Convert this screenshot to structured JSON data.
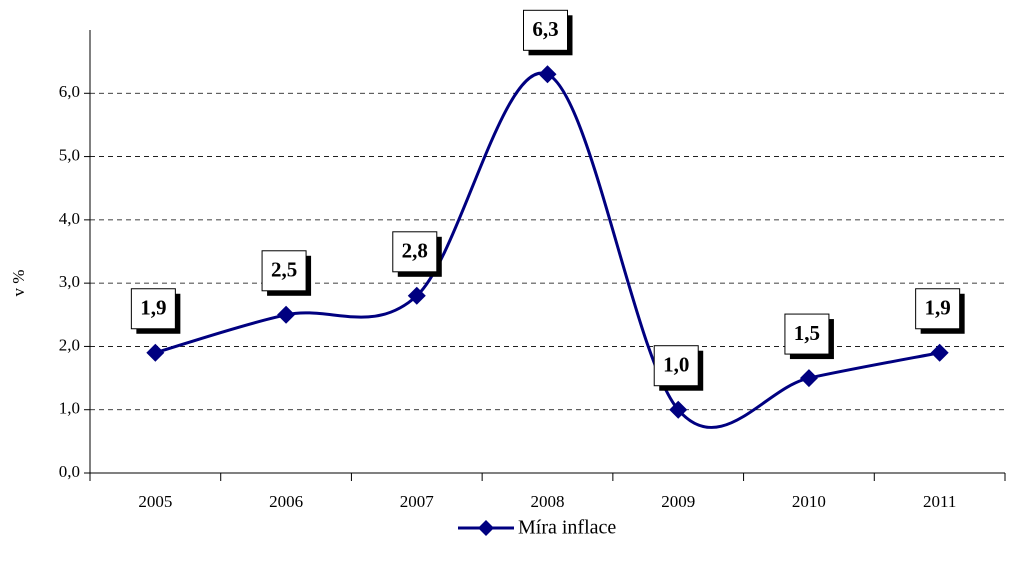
{
  "chart_data": {
    "type": "line",
    "y_label": "v %",
    "categories": [
      "2005",
      "2006",
      "2007",
      "2008",
      "2009",
      "2010",
      "2011"
    ],
    "series": [
      {
        "name": "Míra inflace",
        "color": "#000080",
        "values": [
          1.9,
          2.5,
          2.8,
          6.3,
          1.0,
          1.5,
          1.9
        ],
        "value_labels": [
          "1,9",
          "2,5",
          "2,8",
          "6,3",
          "1,0",
          "1,5",
          "1,9"
        ]
      }
    ],
    "ylim": [
      0,
      7
    ],
    "yticks": [
      {
        "value": 0,
        "label": "0,0"
      },
      {
        "value": 1,
        "label": "1,0"
      },
      {
        "value": 2,
        "label": "2,0"
      },
      {
        "value": 3,
        "label": "3,0"
      },
      {
        "value": 4,
        "label": "4,0"
      },
      {
        "value": 5,
        "label": "5,0"
      },
      {
        "value": 6,
        "label": "6,0"
      }
    ],
    "grid": true,
    "smooth": true,
    "legend": "bottom"
  }
}
